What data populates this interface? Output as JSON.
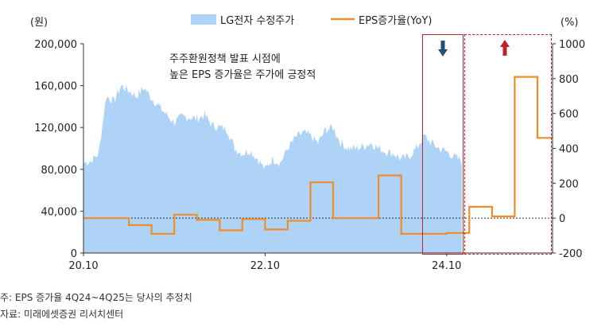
{
  "chart_data": {
    "type": "area+line",
    "title": "",
    "left_unit": "(원)",
    "right_unit": "(%)",
    "left_ylim": [
      0,
      200000
    ],
    "right_ylim": [
      -200,
      1000
    ],
    "left_ticks": [
      0,
      40000,
      80000,
      120000,
      160000,
      200000
    ],
    "left_tick_labels": [
      "0",
      "40,000",
      "80,000",
      "120,000",
      "160,000",
      "200,000"
    ],
    "right_ticks": [
      -200,
      0,
      200,
      400,
      600,
      800,
      1000
    ],
    "right_tick_labels": [
      "-200",
      "0",
      "200",
      "400",
      "600",
      "800",
      "1000"
    ],
    "x_range": [
      "2020-10",
      "2025-12"
    ],
    "x_ticks": [
      {
        "date": "2020-10",
        "label": "20.10"
      },
      {
        "date": "2022-10",
        "label": "22.10"
      },
      {
        "date": "2024-10",
        "label": "24.10"
      }
    ],
    "series": [
      {
        "name": "LG전자 수정주가",
        "kind": "area",
        "axis": "left",
        "color": "#aed3f7",
        "points": [
          [
            "2020-10",
            86000
          ],
          [
            "2020-11",
            88000
          ],
          [
            "2020-12",
            95000
          ],
          [
            "2021-01",
            150000
          ],
          [
            "2021-02",
            145000
          ],
          [
            "2021-03",
            160000
          ],
          [
            "2021-04",
            155000
          ],
          [
            "2021-05",
            150000
          ],
          [
            "2021-06",
            158000
          ],
          [
            "2021-07",
            148000
          ],
          [
            "2021-08",
            140000
          ],
          [
            "2021-09",
            132000
          ],
          [
            "2021-10",
            125000
          ],
          [
            "2021-11",
            130000
          ],
          [
            "2021-12",
            130000
          ],
          [
            "2022-01",
            128000
          ],
          [
            "2022-02",
            132000
          ],
          [
            "2022-03",
            122000
          ],
          [
            "2022-04",
            120000
          ],
          [
            "2022-05",
            118000
          ],
          [
            "2022-06",
            100000
          ],
          [
            "2022-07",
            95000
          ],
          [
            "2022-08",
            98000
          ],
          [
            "2022-09",
            90000
          ],
          [
            "2022-10",
            80000
          ],
          [
            "2022-11",
            90000
          ],
          [
            "2022-12",
            86000
          ],
          [
            "2023-01",
            100000
          ],
          [
            "2023-02",
            110000
          ],
          [
            "2023-03",
            115000
          ],
          [
            "2023-04",
            112000
          ],
          [
            "2023-05",
            105000
          ],
          [
            "2023-06",
            118000
          ],
          [
            "2023-07",
            120000
          ],
          [
            "2023-08",
            105000
          ],
          [
            "2023-09",
            100000
          ],
          [
            "2023-10",
            100000
          ],
          [
            "2023-11",
            102000
          ],
          [
            "2023-12",
            105000
          ],
          [
            "2024-01",
            100000
          ],
          [
            "2024-02",
            97000
          ],
          [
            "2024-03",
            95000
          ],
          [
            "2024-04",
            90000
          ],
          [
            "2024-05",
            92000
          ],
          [
            "2024-06",
            100000
          ],
          [
            "2024-07",
            112000
          ],
          [
            "2024-08",
            105000
          ],
          [
            "2024-09",
            100000
          ],
          [
            "2024-10",
            97000
          ],
          [
            "2024-11",
            92000
          ],
          [
            "2024-12",
            88000
          ]
        ]
      },
      {
        "name": "EPS증가율(YoY)",
        "kind": "step",
        "axis": "right",
        "color": "#f08c2a",
        "points": [
          [
            "2020-10",
            0
          ],
          [
            "2021-04",
            -40
          ],
          [
            "2021-07",
            -90
          ],
          [
            "2021-10",
            20
          ],
          [
            "2022-01",
            -10
          ],
          [
            "2022-04",
            -70
          ],
          [
            "2022-07",
            -5
          ],
          [
            "2022-10",
            -65
          ],
          [
            "2023-01",
            -15
          ],
          [
            "2023-04",
            205
          ],
          [
            "2023-07",
            0
          ],
          [
            "2023-10",
            0
          ],
          [
            "2024-01",
            245
          ],
          [
            "2024-04",
            -90
          ],
          [
            "2024-07",
            -90
          ],
          [
            "2024-10",
            -85
          ],
          [
            "2025-01",
            65
          ],
          [
            "2025-04",
            10
          ],
          [
            "2025-07",
            810
          ],
          [
            "2025-10",
            460
          ]
        ],
        "end": "2025-12"
      }
    ],
    "reference_line": {
      "axis": "right",
      "value": 0,
      "style": "dotted"
    },
    "annotation": [
      "주주환원정책 발표 시점에",
      "높은 EPS 증가율은 주가에 긍정적"
    ],
    "highlights": [
      {
        "style": "solid-box",
        "arrow": "down",
        "color": "#1f4f7a",
        "range": [
          "2024-07",
          "2024-12"
        ]
      },
      {
        "style": "dashed-box",
        "arrow": "up",
        "color": "#c0222c",
        "range": [
          "2024-12",
          "2025-12"
        ]
      }
    ],
    "legend_position": "top-center",
    "grid": false
  },
  "footnotes": [
    "주: EPS 증가율 4Q24~4Q25는 당사의 추정치",
    "자료: 미래에셋증권 리서치센터"
  ]
}
